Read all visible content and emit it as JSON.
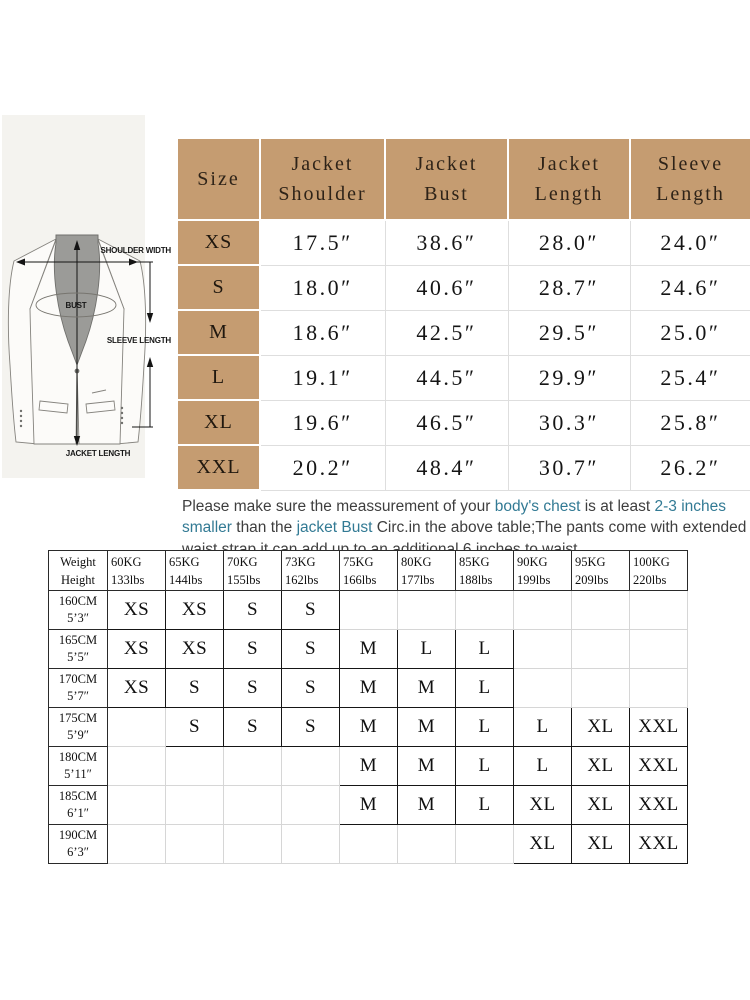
{
  "colors": {
    "tan": "#c59c71",
    "c_xs": "#b9d5ea",
    "c_s": "#2e75b6",
    "c_m": "#f8cbad",
    "c_l": "#c45a13",
    "c_xl": "#b0d69e",
    "c_xxl": "#4a6a2e",
    "hl": "#327a94"
  },
  "size_chart": {
    "columns": [
      "Size",
      "Jacket\nShoulder",
      "Jacket\nBust",
      "Jacket\nLength",
      "Sleeve\nLength"
    ],
    "rows": [
      {
        "size": "XS",
        "values": [
          "17.5″",
          "38.6″",
          "28.0″",
          "24.0″"
        ]
      },
      {
        "size": "S",
        "values": [
          "18.0″",
          "40.6″",
          "28.7″",
          "24.6″"
        ]
      },
      {
        "size": "M",
        "values": [
          "18.6″",
          "42.5″",
          "29.5″",
          "25.0″"
        ]
      },
      {
        "size": "L",
        "values": [
          "19.1″",
          "44.5″",
          "29.9″",
          "25.4″"
        ]
      },
      {
        "size": "XL",
        "values": [
          "19.6″",
          "46.5″",
          "30.3″",
          "25.8″"
        ]
      },
      {
        "size": "XXL",
        "values": [
          "20.2″",
          "48.4″",
          "30.7″",
          "26.2″"
        ]
      }
    ]
  },
  "note_segments": [
    {
      "text": "Please make sure the meassurement of your ",
      "highlight": false
    },
    {
      "text": "body's chest",
      "highlight": true
    },
    {
      "text": " is at least ",
      "highlight": false
    },
    {
      "text": "2-3 inches smaller",
      "highlight": true
    },
    {
      "text": " than the ",
      "highlight": false
    },
    {
      "text": "jacket Bust",
      "highlight": true
    },
    {
      "text": " Circ.in the above table;The pants come with extended waist strap,it can add up to an additional 6 inches to waist.",
      "highlight": false
    }
  ],
  "fit_matrix": {
    "corner": [
      "Weight",
      "Height"
    ],
    "weight_columns": [
      {
        "kg": "60KG",
        "lbs": "133lbs"
      },
      {
        "kg": "65KG",
        "lbs": "144lbs"
      },
      {
        "kg": "70KG",
        "lbs": "155lbs"
      },
      {
        "kg": "73KG",
        "lbs": "162lbs"
      },
      {
        "kg": "75KG",
        "lbs": "166lbs"
      },
      {
        "kg": "80KG",
        "lbs": "177lbs"
      },
      {
        "kg": "85KG",
        "lbs": "188lbs"
      },
      {
        "kg": "90KG",
        "lbs": "199lbs"
      },
      {
        "kg": "95KG",
        "lbs": "209lbs"
      },
      {
        "kg": "100KG",
        "lbs": "220lbs"
      }
    ],
    "height_rows": [
      {
        "cm": "160CM",
        "ft": "5’3″",
        "cells": [
          "XS",
          "XS",
          "S",
          "S",
          "",
          "",
          "",
          "",
          "",
          ""
        ]
      },
      {
        "cm": "165CM",
        "ft": "5’5″",
        "cells": [
          "XS",
          "XS",
          "S",
          "S",
          "M",
          "L",
          "L",
          "",
          "",
          ""
        ]
      },
      {
        "cm": "170CM",
        "ft": "5’7″",
        "cells": [
          "XS",
          "S",
          "S",
          "S",
          "M",
          "M",
          "L",
          "",
          "",
          ""
        ]
      },
      {
        "cm": "175CM",
        "ft": "5’9″",
        "cells": [
          "",
          "S",
          "S",
          "S",
          "M",
          "M",
          "L",
          "L",
          "XL",
          "XXL"
        ]
      },
      {
        "cm": "180CM",
        "ft": "5’11″",
        "cells": [
          "",
          "",
          "",
          "",
          "M",
          "M",
          "L",
          "L",
          "XL",
          "XXL"
        ]
      },
      {
        "cm": "185CM",
        "ft": "6’1″",
        "cells": [
          "",
          "",
          "",
          "",
          "M",
          "M",
          "L",
          "XL",
          "XL",
          "XXL"
        ]
      },
      {
        "cm": "190CM",
        "ft": "6’3″",
        "cells": [
          "",
          "",
          "",
          "",
          "",
          "",
          "",
          "XL",
          "XL",
          "XXL"
        ]
      }
    ]
  },
  "diagram": {
    "labels": {
      "shoulder": "SHOULDER WIDTH",
      "bust": "BUST",
      "sleeve": "SLEEVE LENGTH",
      "length": "JACKET LENGTH"
    }
  }
}
